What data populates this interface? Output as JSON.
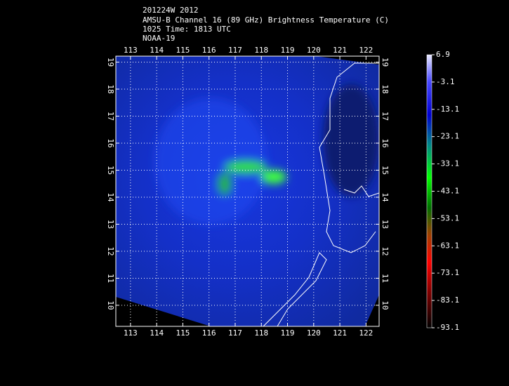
{
  "header": {
    "lines": [
      "201224W 2012",
      "AMSU-B Channel 16 (89 GHz) Brightness Temperature (C)",
      "1025 Time: 1813 UTC",
      "NOAA-19"
    ]
  },
  "map": {
    "xlim": [
      112.44,
      122.5
    ],
    "ylim": [
      9.22,
      19.22
    ],
    "xticks": [
      113,
      114,
      115,
      116,
      117,
      118,
      119,
      120,
      121,
      122
    ],
    "yticks": [
      10,
      11,
      12,
      13,
      14,
      15,
      16,
      17,
      18,
      19
    ],
    "grid": true
  },
  "colorbar": {
    "lim": [
      -93.1,
      6.9
    ],
    "ticks": [
      6.9,
      -3.1,
      -13.1,
      -23.1,
      -33.1,
      -43.1,
      -53.1,
      -63.1,
      -73.1,
      -83.1,
      -93.1
    ]
  }
}
